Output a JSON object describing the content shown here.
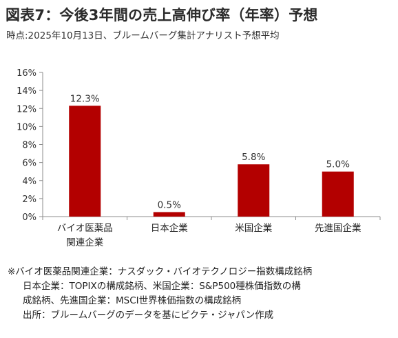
{
  "header": {
    "title": "図表7：今後3年間の売上高伸び率（年率）予想",
    "subtitle": "時点:2025年10月13日、ブルームバーグ集計アナリスト予想平均"
  },
  "chart_data": {
    "type": "bar",
    "categories": [
      "バイオ医薬品\n関連企業",
      "日本企業",
      "米国企業",
      "先進国企業"
    ],
    "values": [
      12.3,
      0.5,
      5.8,
      5.0
    ],
    "value_labels": [
      "12.3%",
      "0.5%",
      "5.8%",
      "5.0%"
    ],
    "yticks": [
      0,
      2,
      4,
      6,
      8,
      10,
      12,
      14,
      16
    ],
    "ytick_labels": [
      "0%",
      "2%",
      "4%",
      "6%",
      "8%",
      "10%",
      "12%",
      "14%",
      "16%"
    ],
    "ylim": [
      0,
      16
    ],
    "grid": false,
    "colors": {
      "bar": "#B30000",
      "axis": "#8c8c8c"
    }
  },
  "notes": {
    "lines": [
      "※バイオ医薬品関連企業：ナスダック・バイオテクノロジー指数構成銘柄",
      "日本企業：TOPIXの構成銘柄、米国企業：S&P500種株価指数の構",
      "成銘柄、先進国企業：MSCI世界株価指数の構成銘柄",
      "出所：ブルームバーグのデータを基にピクテ・ジャパン作成"
    ]
  }
}
